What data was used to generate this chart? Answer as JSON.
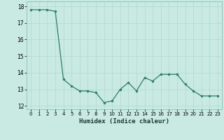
{
  "x": [
    0,
    1,
    2,
    3,
    4,
    5,
    6,
    7,
    8,
    9,
    10,
    11,
    12,
    13,
    14,
    15,
    16,
    17,
    18,
    19,
    20,
    21,
    22,
    23
  ],
  "y": [
    17.8,
    17.8,
    17.8,
    17.7,
    13.6,
    13.2,
    12.9,
    12.9,
    12.8,
    12.2,
    12.3,
    13.0,
    13.4,
    12.9,
    13.7,
    13.5,
    13.9,
    13.9,
    13.9,
    13.3,
    12.9,
    12.6,
    12.6,
    12.6
  ],
  "xlabel": "Humidex (Indice chaleur)",
  "xlim": [
    -0.5,
    23.5
  ],
  "ylim": [
    11.8,
    18.3
  ],
  "yticks": [
    12,
    13,
    14,
    15,
    16,
    17,
    18
  ],
  "xticks": [
    0,
    1,
    2,
    3,
    4,
    5,
    6,
    7,
    8,
    9,
    10,
    11,
    12,
    13,
    14,
    15,
    16,
    17,
    18,
    19,
    20,
    21,
    22,
    23
  ],
  "line_color": "#2e7d6b",
  "marker_color": "#2e7d6b",
  "bg_color": "#c8eae2",
  "grid_color": "#b0d8ce",
  "plot_bg": "#c8eae2"
}
